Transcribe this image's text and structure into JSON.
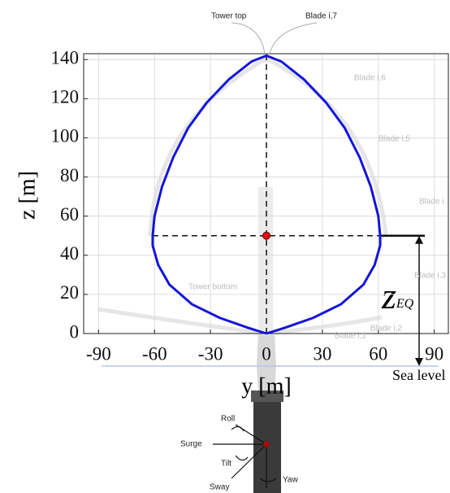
{
  "chart_data": {
    "type": "line",
    "xlabel": "y [m]",
    "ylabel": "z [m]",
    "x": [
      0,
      10,
      25,
      40,
      52,
      58,
      61,
      61,
      60,
      56,
      50,
      42,
      32,
      20,
      8,
      0,
      -8,
      -20,
      -32,
      -42,
      -50,
      -56,
      -60,
      -61,
      -61,
      -58,
      -52,
      -40,
      -25,
      -10,
      0
    ],
    "series": [
      {
        "color": "#1414dc",
        "values": [
          0,
          3,
          8,
          15,
          25,
          35,
          45,
          50,
          60,
          75,
          90,
          105,
          118,
          130,
          139,
          142,
          139,
          130,
          118,
          105,
          90,
          75,
          60,
          50,
          45,
          35,
          25,
          15,
          8,
          3,
          0
        ]
      }
    ],
    "xlim": [
      -98,
      98
    ],
    "xticks": [
      -90,
      -60,
      -30,
      0,
      30,
      60,
      90
    ],
    "ylim": [
      0,
      143
    ],
    "yticks": [
      0,
      20,
      40,
      60,
      80,
      100,
      120,
      140
    ],
    "grid": true,
    "marker": {
      "x": 0,
      "y": 50,
      "color": "#e01010"
    },
    "z_eq_label": {
      "base": "z",
      "sub": "EQ"
    },
    "sea_level_label": "Sea level",
    "annotations": [
      "Tower top",
      "Blade i,7",
      "Blade i,6",
      "Blade i,5",
      "Blade i",
      "Blade i,3",
      "Blade i,2",
      "Blade i,1",
      "Tower bottom"
    ],
    "motion_labels": [
      "Roll",
      "Surge",
      "Tilt",
      "Sway",
      "Yaw"
    ]
  }
}
